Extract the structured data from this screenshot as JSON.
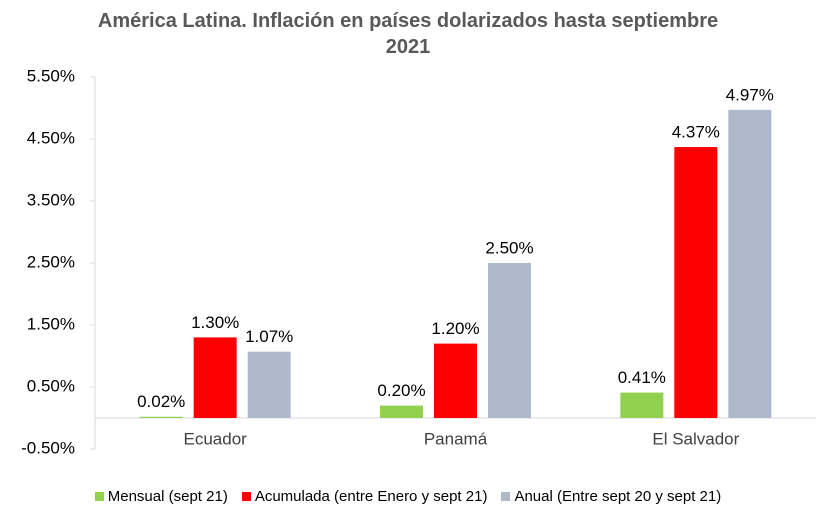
{
  "chart_data": {
    "type": "bar",
    "title": "América Latina. Inflación en países dolarizados hasta septiembre 2021",
    "categories": [
      "Ecuador",
      "Panamá",
      "El Salvador"
    ],
    "series": [
      {
        "name": "Mensual (sept 21)",
        "color": "#92d050",
        "values": [
          0.02,
          0.2,
          0.41
        ],
        "value_labels": [
          "0.02%",
          "0.20%",
          "0.41%"
        ]
      },
      {
        "name": "Acumulada (entre Enero y sept 21)",
        "color": "#ff0000",
        "values": [
          1.3,
          1.2,
          4.37
        ],
        "value_labels": [
          "1.30%",
          "1.20%",
          "4.37%"
        ]
      },
      {
        "name": "Anual (Entre sept 20 y sept 21)",
        "color": "#adb9ca",
        "values": [
          1.07,
          2.5,
          4.97
        ],
        "value_labels": [
          "1.07%",
          "2.50%",
          "4.97%"
        ]
      }
    ],
    "ylim": [
      -0.5,
      5.5
    ],
    "yticks": [
      {
        "value": -0.5,
        "label": "-0.50%"
      },
      {
        "value": 0.5,
        "label": "0.50%"
      },
      {
        "value": 1.5,
        "label": "1.50%"
      },
      {
        "value": 2.5,
        "label": "2.50%"
      },
      {
        "value": 3.5,
        "label": "3.50%"
      },
      {
        "value": 4.5,
        "label": "4.50%"
      },
      {
        "value": 5.5,
        "label": "5.50%"
      }
    ],
    "grid": false,
    "legend": "bottom"
  }
}
